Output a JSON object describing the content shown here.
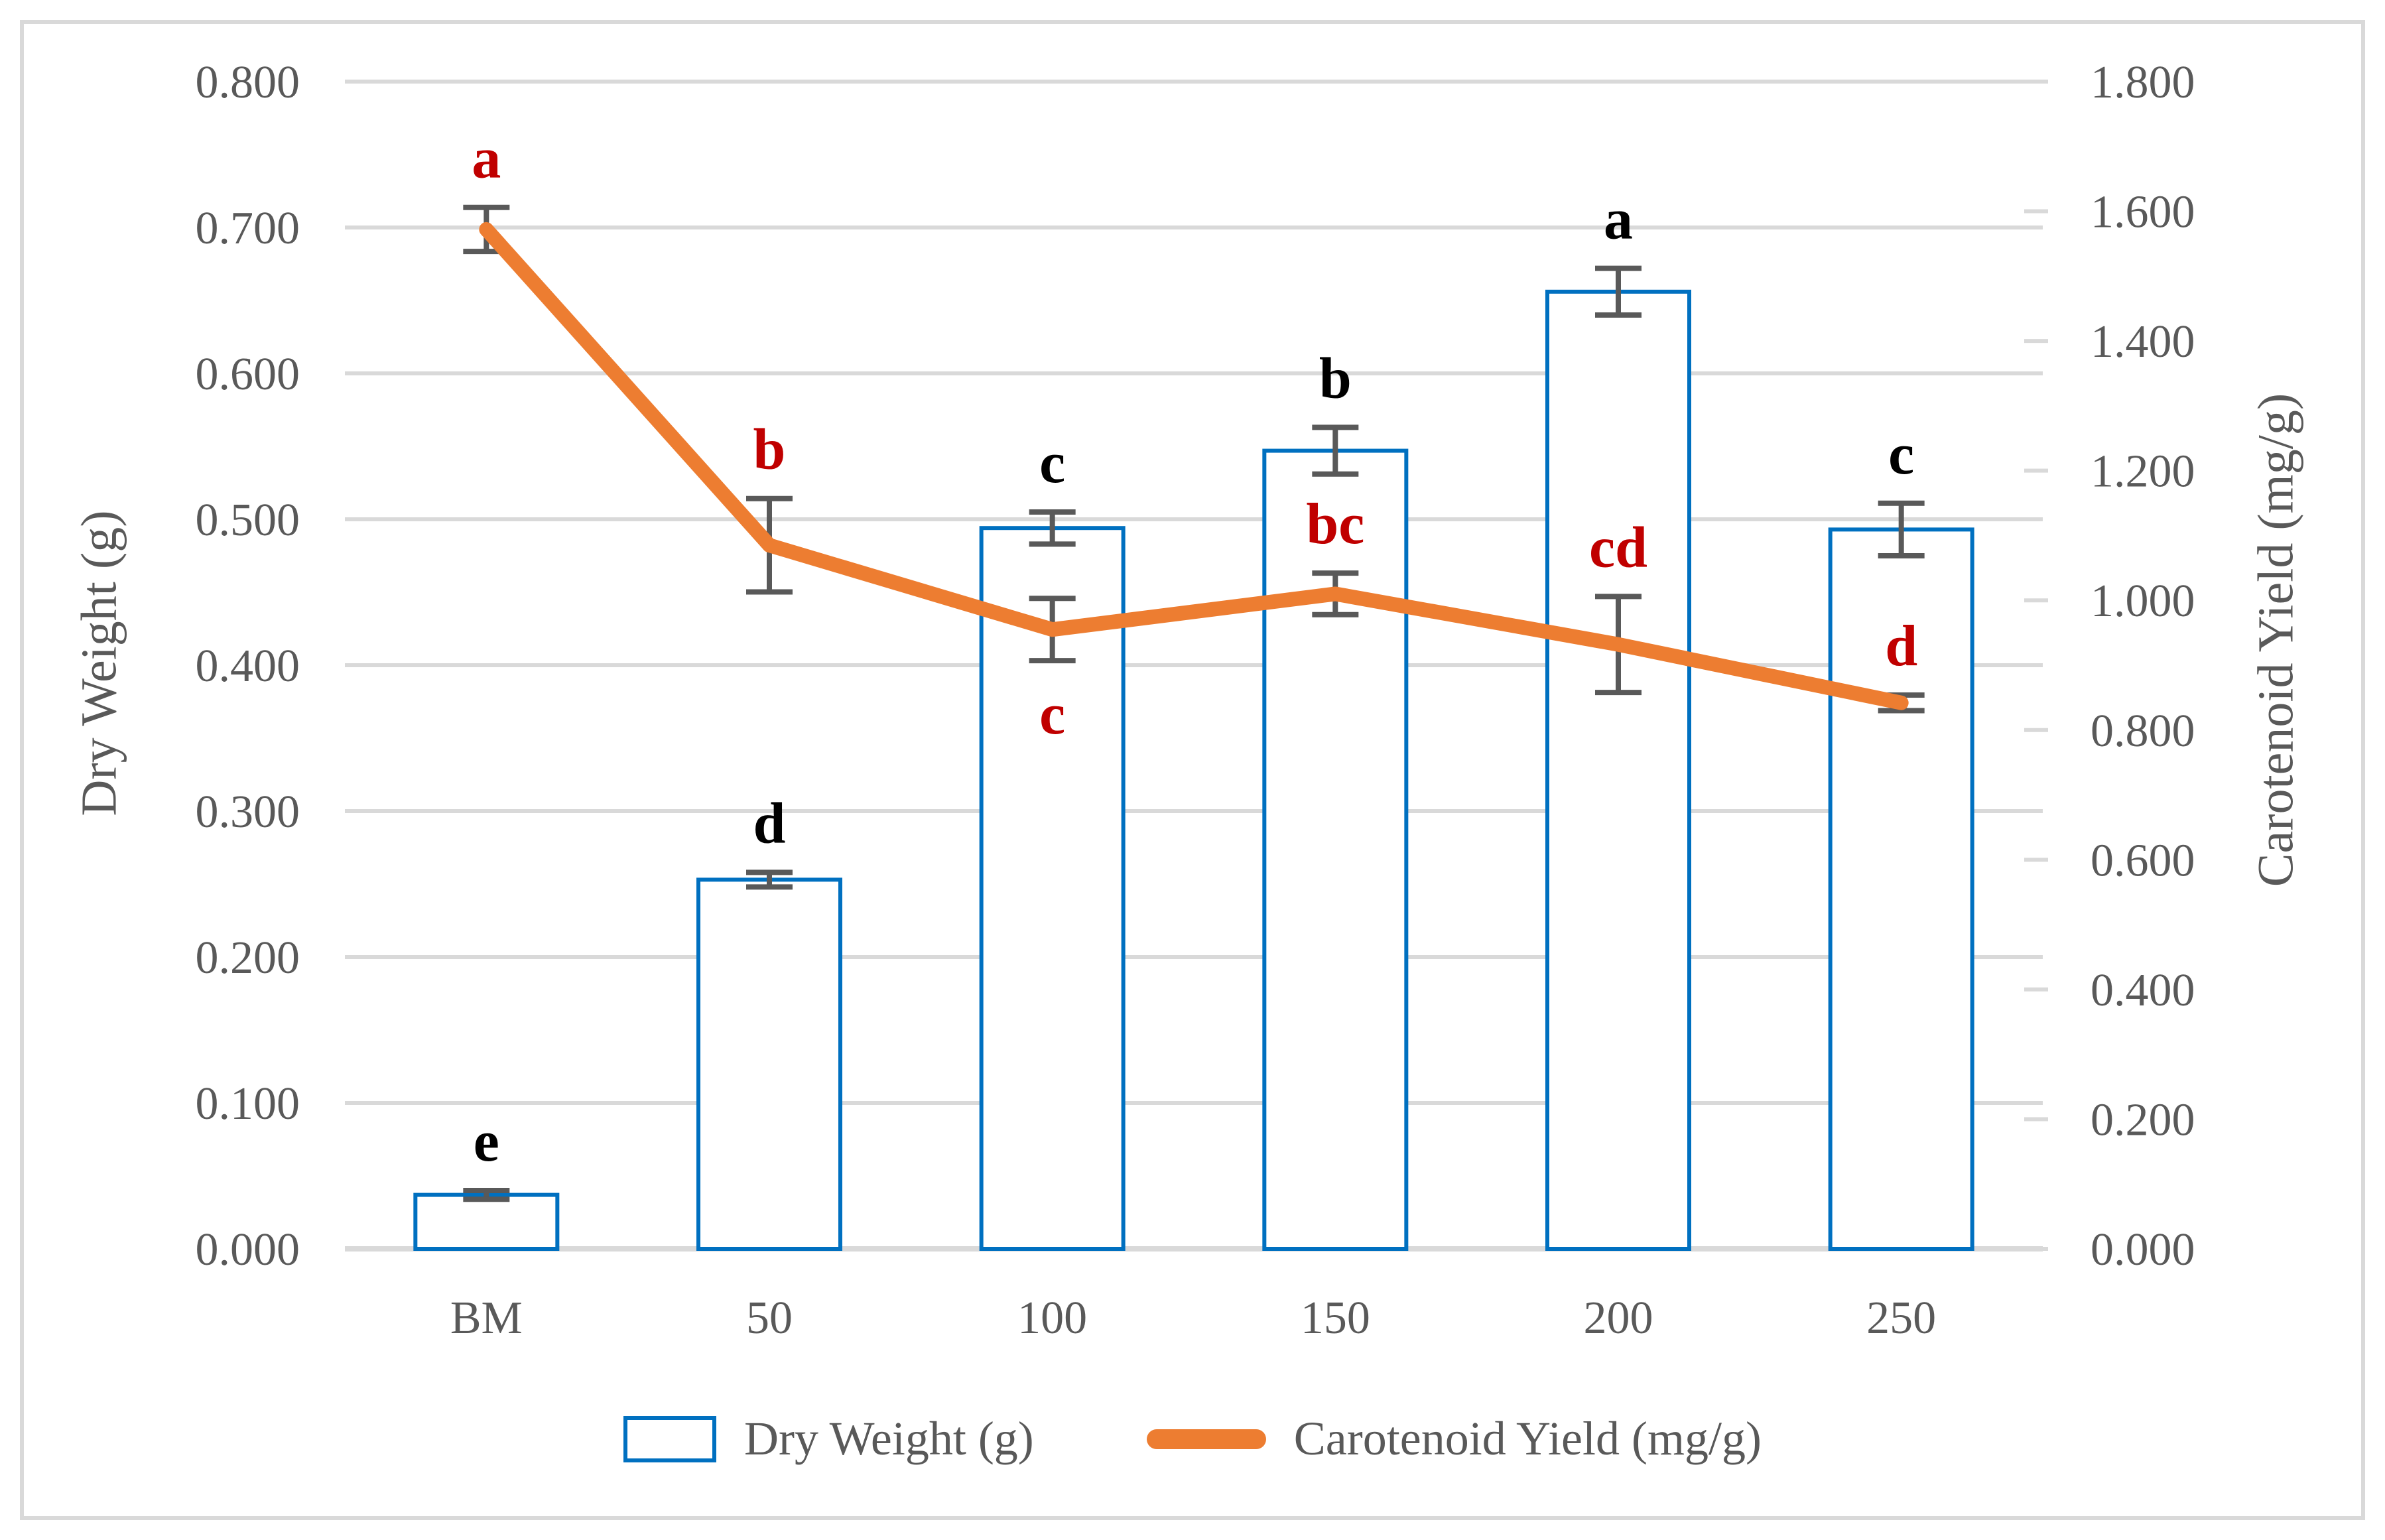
{
  "figure": {
    "background": "#FFFFFF",
    "border_color": "#D9D9D9"
  },
  "chart_data": {
    "type": "combo-bar-line",
    "categories": [
      "BM",
      "50",
      "100",
      "150",
      "200",
      "250"
    ],
    "left_axis": {
      "title": "Dry Weight (g)",
      "min": 0.0,
      "max": 0.8,
      "step": 0.1,
      "tick_labels": [
        "0.800",
        "0.700",
        "0.600",
        "0.500",
        "0.400",
        "0.300",
        "0.200",
        "0.100",
        "0.000"
      ]
    },
    "right_axis": {
      "title": "Carotenoid Yield (mg/g)",
      "min": 0.0,
      "max": 1.8,
      "step": 0.2,
      "tick_labels": [
        "1.800",
        "1.600",
        "1.400",
        "1.200",
        "1.000",
        "0.800",
        "0.600",
        "0.400",
        "0.200",
        "0.000"
      ]
    },
    "grid": "horizontal-major",
    "gridline_color": "#D9D9D9",
    "error_bar_color": "#595959",
    "axis_text_color": "#595959",
    "series": [
      {
        "name": "Dry Weight (g)",
        "type": "bar",
        "axis": "left",
        "color": "#0070C0",
        "fill": "#FFFFFF",
        "values": [
          0.037,
          0.253,
          0.494,
          0.547,
          0.656,
          0.493
        ],
        "errors": [
          0.003,
          0.005,
          0.011,
          0.016,
          0.016,
          0.018
        ],
        "letters": [
          "e",
          "d",
          "c",
          "b",
          "a",
          "c"
        ],
        "letter_color": "#000000"
      },
      {
        "name": "Carotenoid Yield (mg/g)",
        "type": "line",
        "axis": "right",
        "color": "#ED7D31",
        "values": [
          1.572,
          1.085,
          0.955,
          1.01,
          0.932,
          0.842
        ],
        "errors": [
          0.034,
          0.072,
          0.048,
          0.032,
          0.074,
          0.012
        ],
        "letters": [
          "a",
          "b",
          "c",
          "bc",
          "cd",
          "d"
        ],
        "letter_positions": [
          "above",
          "above",
          "below",
          "above",
          "above",
          "above"
        ],
        "letter_color": "#C00000"
      }
    ],
    "legend": {
      "position": "bottom",
      "items": [
        {
          "label": "Dry Weight (g)",
          "swatch": "bar-outline"
        },
        {
          "label": "Carotenoid Yield (mg/g)",
          "swatch": "line"
        }
      ]
    }
  }
}
